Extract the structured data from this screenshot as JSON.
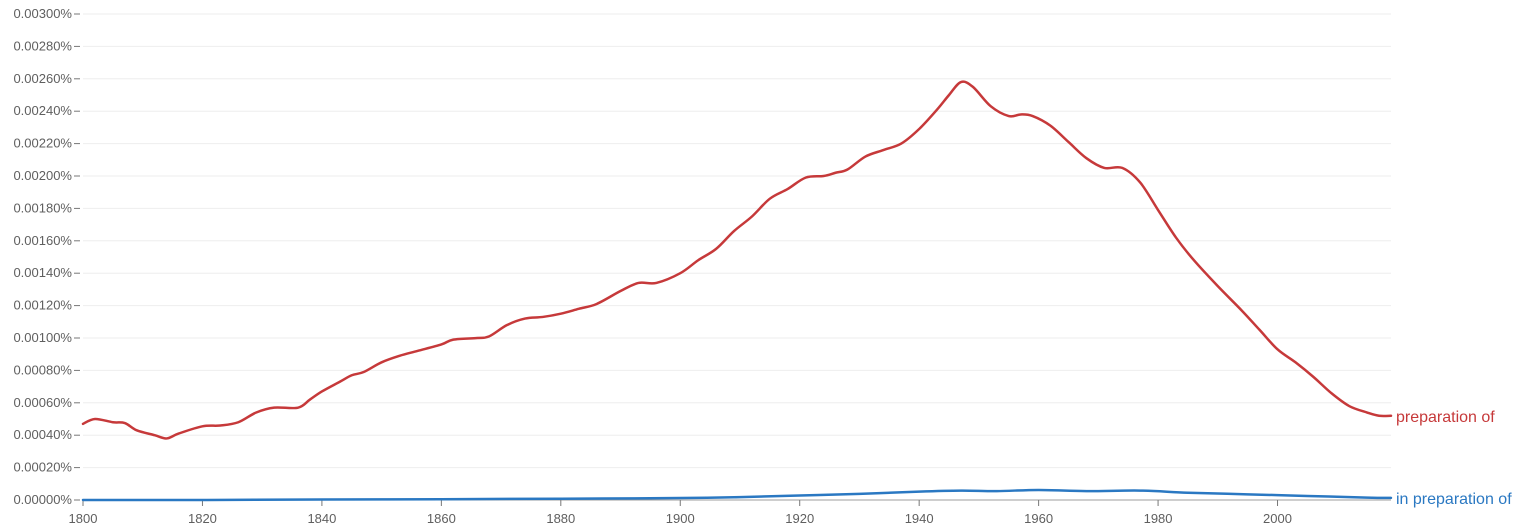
{
  "chart_data": {
    "type": "line",
    "xlim": [
      1800,
      2019
    ],
    "ylim": [
      0,
      0.003
    ],
    "y_tick_labels": [
      "0.00000%",
      "0.00020%",
      "0.00040%",
      "0.00060%",
      "0.00080%",
      "0.00100%",
      "0.00120%",
      "0.00140%",
      "0.00160%",
      "0.00180%",
      "0.00200%",
      "0.00220%",
      "0.00240%",
      "0.00260%",
      "0.00280%",
      "0.00300%"
    ],
    "y_ticks": [
      0,
      0.0002,
      0.0004,
      0.0006,
      0.0008,
      0.001,
      0.0012,
      0.0014,
      0.0016,
      0.0018,
      0.002,
      0.0022,
      0.0024,
      0.0026,
      0.0028,
      0.003
    ],
    "x_tick_labels": [
      "1800",
      "1820",
      "1840",
      "1860",
      "1880",
      "1900",
      "1920",
      "1940",
      "1960",
      "1980",
      "2000"
    ],
    "x_ticks": [
      1800,
      1820,
      1840,
      1860,
      1880,
      1900,
      1920,
      1940,
      1960,
      1980,
      2000
    ],
    "grid": true,
    "legend": "inline labels at right end of each line",
    "series": [
      {
        "name": "preparation of",
        "color": "#c6393a",
        "x": [
          1800,
          1802,
          1805,
          1807,
          1809,
          1812,
          1814,
          1816,
          1820,
          1823,
          1826,
          1829,
          1832,
          1836,
          1838,
          1840,
          1843,
          1845,
          1847,
          1850,
          1853,
          1856,
          1860,
          1862,
          1866,
          1868,
          1871,
          1874,
          1877,
          1880,
          1883,
          1886,
          1890,
          1893,
          1896,
          1900,
          1903,
          1906,
          1909,
          1912,
          1915,
          1918,
          1921,
          1924,
          1926,
          1928,
          1931,
          1934,
          1937,
          1940,
          1943,
          1945,
          1947,
          1949,
          1952,
          1955,
          1957,
          1959,
          1962,
          1965,
          1968,
          1971,
          1974,
          1977,
          1980,
          1983,
          1986,
          1990,
          1994,
          1997,
          2000,
          2003,
          2006,
          2009,
          2012,
          2015,
          2017,
          2019
        ],
        "y": [
          0.00047,
          0.0005,
          0.00048,
          0.000475,
          0.00043,
          0.0004,
          0.00038,
          0.00041,
          0.000455,
          0.00046,
          0.00048,
          0.00054,
          0.00057,
          0.00057,
          0.00062,
          0.00067,
          0.00073,
          0.00077,
          0.00079,
          0.00085,
          0.00089,
          0.00092,
          0.00096,
          0.00099,
          0.001,
          0.00101,
          0.00108,
          0.00112,
          0.00113,
          0.00115,
          0.00118,
          0.00121,
          0.00129,
          0.00134,
          0.00134,
          0.0014,
          0.00148,
          0.00155,
          0.00166,
          0.00175,
          0.00186,
          0.00192,
          0.00199,
          0.002,
          0.00202,
          0.00204,
          0.00212,
          0.00216,
          0.0022,
          0.00229,
          0.00241,
          0.0025,
          0.00258,
          0.00255,
          0.00243,
          0.00237,
          0.00238,
          0.00237,
          0.00231,
          0.00221,
          0.00211,
          0.00205,
          0.00205,
          0.00196,
          0.00179,
          0.00162,
          0.00148,
          0.00132,
          0.00117,
          0.00105,
          0.00093,
          0.00085,
          0.00076,
          0.00066,
          0.00058,
          0.00054,
          0.00052,
          0.00052
        ]
      },
      {
        "name": "in preparation of",
        "color": "#2a78c2",
        "x": [
          1800,
          1820,
          1840,
          1860,
          1880,
          1900,
          1910,
          1920,
          1930,
          1940,
          1947,
          1953,
          1960,
          1968,
          1977,
          1985,
          1995,
          2005,
          2015,
          2019
        ],
        "y": [
          0.0,
          0.0,
          3e-06,
          5e-06,
          8e-06,
          1.2e-05,
          1.8e-05,
          2.8e-05,
          3.8e-05,
          5.2e-05,
          5.8e-05,
          5.5e-05,
          6.2e-05,
          5.5e-05,
          5.8e-05,
          4.5e-05,
          3.5e-05,
          2.5e-05,
          1.5e-05,
          1.3e-05
        ]
      }
    ]
  }
}
